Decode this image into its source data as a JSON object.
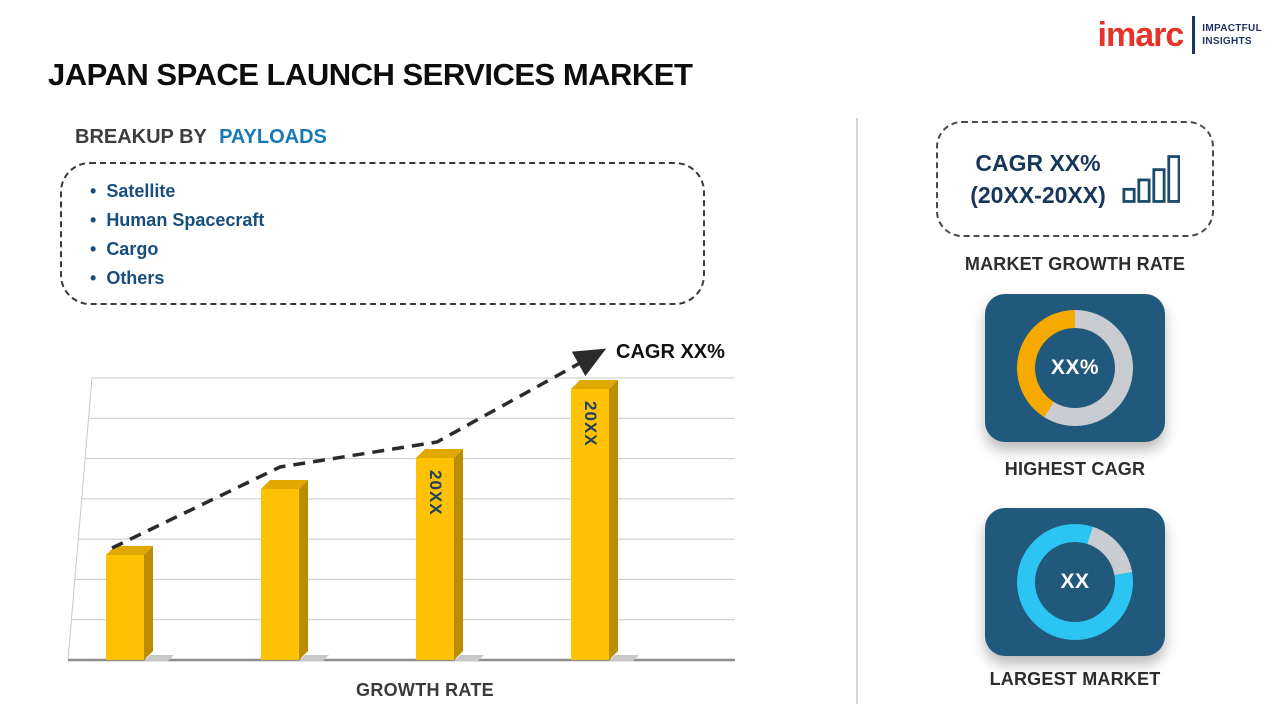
{
  "logo": {
    "brand": "imarc",
    "tagline_line1": "IMPACTFUL",
    "tagline_line2": "INSIGHTS"
  },
  "header": {
    "title": "JAPAN SPACE LAUNCH SERVICES MARKET"
  },
  "breakup": {
    "heading_prefix": "BREAKUP BY",
    "heading_highlight": "PAYLOADS",
    "items": [
      "Satellite",
      "Human Spacecraft",
      "Cargo",
      "Others"
    ]
  },
  "chart": {
    "cagr_annotation": "CAGR XX%",
    "xlabel": "GROWTH RATE",
    "bar_labels": [
      "",
      "",
      "20XX",
      "20XX"
    ]
  },
  "chart_data": {
    "type": "bar",
    "categories": [
      "",
      "",
      "20XX",
      "20XX"
    ],
    "values": [
      37,
      60,
      71,
      95
    ],
    "values_note": "placeholder chart; no numeric axis shown - values are relative bar heights in % of plot height",
    "title": "",
    "xlabel": "GROWTH RATE",
    "ylabel": "",
    "annotations": [
      "CAGR XX%"
    ],
    "legend": [],
    "grid": "horizontal",
    "bar_color": "#ffc103",
    "trend": "dashed black ascending arrow across bar tops"
  },
  "right_panel": {
    "growth_box": {
      "line1": "CAGR XX%",
      "line2": "(20XX-20XX)"
    },
    "market_growth_rate_label": "MARKET GROWTH RATE",
    "highest_cagr": {
      "value": "XX%",
      "label": "HIGHEST CAGR"
    },
    "largest_market": {
      "value": "XX",
      "label": "LARGEST MARKET"
    }
  },
  "colors": {
    "brand_red": "#e63329",
    "navy_text": "#174e7e",
    "highlight_blue": "#1779b8",
    "bar_yellow": "#ffc103",
    "donut_yellow": "#f7a900",
    "donut_cyan": "#2bc4f3",
    "tile_navy": "#20597c"
  }
}
